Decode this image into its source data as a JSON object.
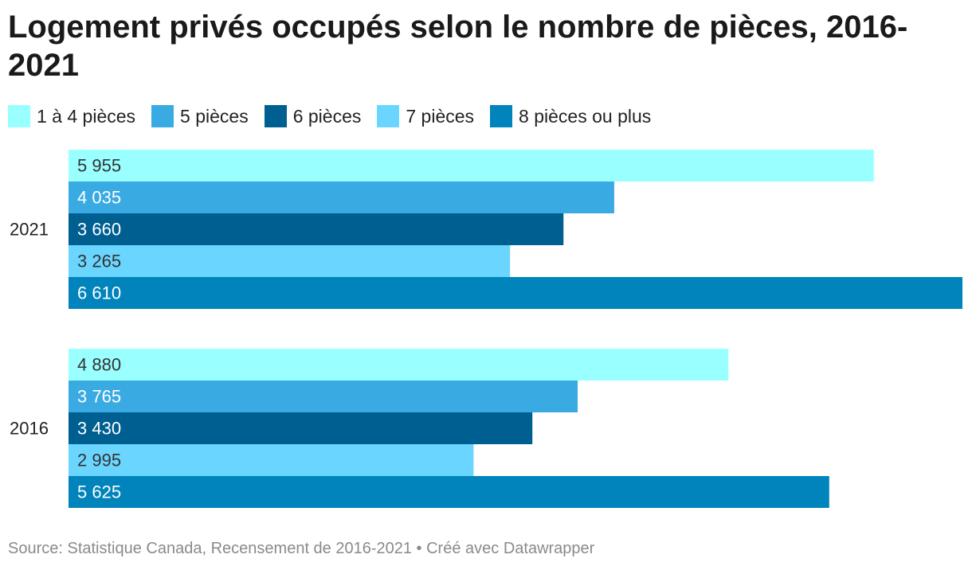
{
  "chart_data": {
    "type": "bar",
    "orientation": "horizontal",
    "title": "Logement privés occupés selon le nombre de pièces, 2016-2021",
    "categories": [
      "2021",
      "2016"
    ],
    "series": [
      {
        "name": "1 à 4 pièces",
        "color": "#99FFFF",
        "label_color": "#333333",
        "values": [
          5955,
          4880
        ],
        "labels": [
          "5 955",
          "4 880"
        ]
      },
      {
        "name": "5 pièces",
        "color": "#3AAAE2",
        "label_color": "#ffffff",
        "values": [
          4035,
          3765
        ],
        "labels": [
          "4 035",
          "3 765"
        ]
      },
      {
        "name": "6 pièces",
        "color": "#005F91",
        "label_color": "#ffffff",
        "values": [
          3660,
          3430
        ],
        "labels": [
          "3 660",
          "3 430"
        ]
      },
      {
        "name": "7 pièces",
        "color": "#6AD5FF",
        "label_color": "#333333",
        "values": [
          3265,
          2995
        ],
        "labels": [
          "3 265",
          "2 995"
        ]
      },
      {
        "name": "8 pièces ou plus",
        "color": "#0084BB",
        "label_color": "#ffffff",
        "values": [
          6610,
          5625
        ],
        "labels": [
          "6 610",
          "5 625"
        ]
      }
    ],
    "xlim": [
      0,
      6610
    ],
    "grid": false,
    "legend_position": "top-left",
    "source": "Source: Statistique Canada, Recensement de 2016-2021 • Créé avec Datawrapper"
  }
}
